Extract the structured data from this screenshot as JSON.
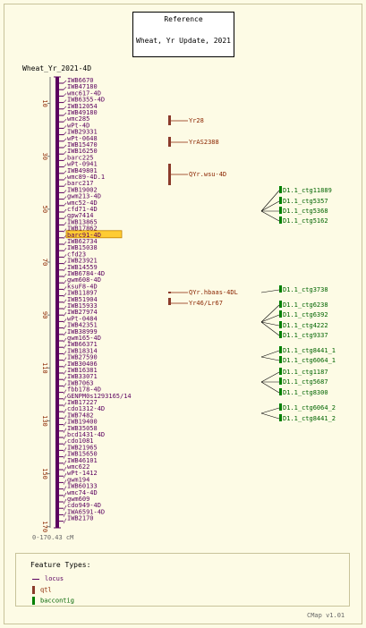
{
  "reference": {
    "title": "Reference",
    "subtitle": "Wheat, Yr Update, 2021"
  },
  "map": {
    "title": "Wheat_Yr_2021-4D",
    "range_label": "0-170.43 cM",
    "axis_ticks": [
      10,
      30,
      50,
      70,
      90,
      110,
      130,
      150,
      170
    ],
    "axis_max": 170.43
  },
  "loci": [
    "IWB6670",
    "IWB47180",
    "wmc617-4D",
    "IWB6355-4D",
    "IWB12054",
    "IWB49180",
    "wmc285",
    "wPt-4D",
    "IWB29331",
    "wPt-0648",
    "IWB15470",
    "IWB16250",
    "barc225",
    "wPt-0941",
    "IWB49801",
    "wmc89-4D.1",
    "barc217",
    "IWB19002",
    "gwm213-4D",
    "wmc52-4D",
    "cfd71-4D",
    "gpw7414",
    "IWB13865",
    "IWB17862",
    "barc91-4D",
    "IWB62734",
    "IWB15038",
    "cfd23",
    "IWB23921",
    "IWB14559",
    "IWB6784-4D",
    "gwm608-4D",
    "ksuF8-4D",
    "IWB11897",
    "IWB51904",
    "IWB15933",
    "IWB27974",
    "wPt-0484",
    "IWB42351",
    "IWB38999",
    "gwm165-4D",
    "IWB66371",
    "IWB18314",
    "IWB27590",
    "IWB30406",
    "IWB16381",
    "IWB33071",
    "IWB7063",
    "fbb178-4D",
    "GENPM0s1293165/14",
    "IWB17227",
    "cdo1312-4D",
    "IWB7482",
    "IWB19400",
    "IWB35058",
    "bcd1431-4D",
    "cdo1081",
    "IWB21965",
    "IWB15650",
    "IWB46101",
    "wmc622",
    "wPt-1412",
    "gwm194",
    "IWB60133",
    "wmc74-4D",
    "gwm609",
    "cdo949-4D",
    "IWA6591-4D",
    "IWB2170"
  ],
  "highlighted_locus": "barc91-4D",
  "qtls": [
    {
      "name": "Yr28"
    },
    {
      "name": "YrAS2388"
    },
    {
      "name": "QYr.wsu-4D"
    },
    {
      "name": "QYr.hbaas-4DL"
    },
    {
      "name": "Yr46/Lr67"
    }
  ],
  "baccontigs": [
    "D1.1_ctg11889",
    "D1.1_ctg5357",
    "D1.1_ctg5368",
    "D1.1_ctg5162",
    "D1.1_ctg3738",
    "D1.1_ctg6238",
    "D1.1_ctg6392",
    "D1.1_ctg4222",
    "D1.1_ctg9337",
    "D1.1_ctg8441_1",
    "D1.1_ctg6064_1",
    "D1.1_ctg1187",
    "D1.1_ctg5687",
    "D1.1_ctg8300",
    "D1.1_ctg6064_2",
    "D1.1_ctg8441_2"
  ],
  "legend": {
    "title": "Feature Types:",
    "items": [
      "locus",
      "qtl",
      "baccontig"
    ]
  },
  "footer": {
    "version": "CMap v1.01"
  },
  "colors": {
    "background": "#fdfbe5",
    "locus": "#5b005f",
    "qtl": "#8b2500",
    "qtl_fill": "#8b3a2a",
    "baccontig": "#008000",
    "highlight": "#ffcc33",
    "axis_label": "#8b2500"
  }
}
